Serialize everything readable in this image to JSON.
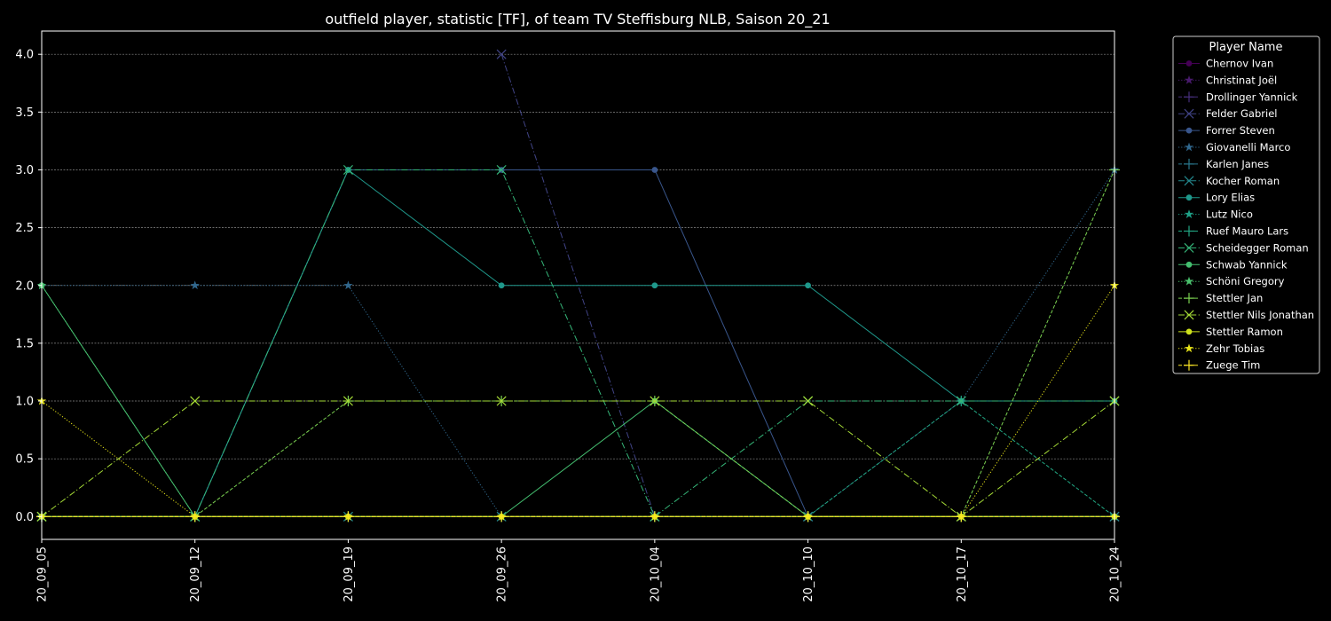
{
  "chart_data": {
    "type": "line",
    "title": "outfield player, statistic [TF], of team TV Steffisburg NLB, Saison 20_21",
    "xlabel": "",
    "ylabel": "",
    "categories": [
      "20_09_05",
      "20_09_12",
      "20_09_19",
      "20_09_26",
      "20_10_04",
      "20_10_10",
      "20_10_17",
      "20_10_24"
    ],
    "ylim": [
      -0.2,
      4.2
    ],
    "yticks": [
      "0.0",
      "0.5",
      "1.0",
      "1.5",
      "2.0",
      "2.5",
      "3.0",
      "3.5",
      "4.0"
    ],
    "grid": "horizontal dotted",
    "legend": {
      "title": "Player Name",
      "placement": "outside right"
    },
    "series": [
      {
        "name": "Chernov Ivan",
        "color": "#440154",
        "marker": "circle",
        "dash": "solid",
        "values": [
          0,
          0,
          0,
          0,
          0,
          0,
          0,
          0
        ]
      },
      {
        "name": "Christinat Joël",
        "color": "#481a6c",
        "marker": "star",
        "dash": "dotted",
        "values": [
          0,
          0,
          0,
          0,
          0,
          0,
          0,
          0
        ]
      },
      {
        "name": "Drollinger Yannick",
        "color": "#472f7d",
        "marker": "plus",
        "dash": "dashed",
        "values": [
          0,
          0,
          0,
          0,
          0,
          0,
          0,
          0
        ]
      },
      {
        "name": "Felder Gabriel",
        "color": "#414487",
        "marker": "x",
        "dash": "dashdot",
        "values": [
          null,
          null,
          null,
          4,
          0,
          0,
          0,
          0
        ]
      },
      {
        "name": "Forrer Steven",
        "color": "#39568c",
        "marker": "circle",
        "dash": "solid",
        "values": [
          0,
          0,
          3,
          3,
          3,
          0,
          0,
          0
        ]
      },
      {
        "name": "Giovanelli Marco",
        "color": "#31688e",
        "marker": "star",
        "dash": "dotted",
        "values": [
          2,
          2,
          2,
          0,
          0,
          0,
          1,
          3
        ]
      },
      {
        "name": "Karlen Janes",
        "color": "#2a788e",
        "marker": "plus",
        "dash": "dashed",
        "values": [
          0,
          0,
          0,
          0,
          0,
          0,
          0,
          0
        ]
      },
      {
        "name": "Kocher Roman",
        "color": "#23888e",
        "marker": "x",
        "dash": "dashdot",
        "values": [
          0,
          0,
          0,
          0,
          0,
          0,
          0,
          0
        ]
      },
      {
        "name": "Lory Elias",
        "color": "#1f988b",
        "marker": "circle",
        "dash": "solid",
        "values": [
          0,
          0,
          3,
          2,
          2,
          2,
          1,
          1
        ]
      },
      {
        "name": "Lutz Nico",
        "color": "#1fa187",
        "marker": "star",
        "dash": "dotted",
        "values": [
          0,
          0,
          0,
          0,
          0,
          0,
          0,
          0
        ]
      },
      {
        "name": "Ruef Mauro Lars",
        "color": "#22a884",
        "marker": "plus",
        "dash": "dashed",
        "values": [
          0,
          0,
          0,
          0,
          0,
          0,
          1,
          0
        ]
      },
      {
        "name": "Scheidegger Roman",
        "color": "#35b779",
        "marker": "x",
        "dash": "dashdot",
        "values": [
          0,
          0,
          3,
          3,
          0,
          1,
          1,
          1
        ]
      },
      {
        "name": "Schwab Yannick",
        "color": "#44bf70",
        "marker": "circle",
        "dash": "solid",
        "values": [
          2,
          0,
          0,
          0,
          1,
          0,
          0,
          0
        ]
      },
      {
        "name": "Schöni Gregory",
        "color": "#4ac16d",
        "marker": "star",
        "dash": "dotted",
        "values": [
          2,
          0,
          0,
          0,
          0,
          0,
          0,
          0
        ]
      },
      {
        "name": "Stettler Jan",
        "color": "#7ad151",
        "marker": "plus",
        "dash": "dashed",
        "values": [
          0,
          0,
          1,
          1,
          1,
          0,
          0,
          3
        ]
      },
      {
        "name": "Stettler Nils Jonathan",
        "color": "#a5db36",
        "marker": "x",
        "dash": "dashdot",
        "values": [
          0,
          1,
          1,
          1,
          1,
          1,
          0,
          1
        ]
      },
      {
        "name": "Stettler Ramon",
        "color": "#cde11d",
        "marker": "circle",
        "dash": "solid",
        "values": [
          0,
          0,
          0,
          0,
          0,
          0,
          0,
          0
        ]
      },
      {
        "name": "Zehr Tobias",
        "color": "#e7e419",
        "marker": "star",
        "dash": "dotted",
        "values": [
          1,
          0,
          0,
          0,
          0,
          0,
          0,
          2
        ]
      },
      {
        "name": "Zuege Tim",
        "color": "#fde725",
        "marker": "plus",
        "dash": "dashed",
        "values": [
          0,
          0,
          0,
          0,
          0,
          0,
          0,
          0
        ]
      }
    ]
  }
}
